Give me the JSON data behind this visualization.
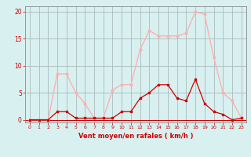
{
  "x": [
    0,
    1,
    2,
    3,
    4,
    5,
    6,
    7,
    8,
    9,
    10,
    11,
    12,
    13,
    14,
    15,
    16,
    17,
    18,
    19,
    20,
    21,
    22,
    23
  ],
  "rafales": [
    0,
    0,
    0,
    8.5,
    8.5,
    5,
    3,
    0.3,
    0.3,
    5.5,
    6.5,
    6.5,
    13,
    16.5,
    15.5,
    15.5,
    15.5,
    16,
    20,
    19.5,
    11.5,
    5,
    3.5,
    0.3
  ],
  "moyen": [
    0,
    0,
    0,
    1.5,
    1.5,
    0.3,
    0.3,
    0.3,
    0.3,
    0.3,
    1.5,
    1.5,
    4,
    5,
    6.5,
    6.5,
    4,
    3.5,
    7.5,
    3,
    1.5,
    1,
    0,
    0.3
  ],
  "xlabel": "Vent moyen/en rafales ( km/h )",
  "yticks": [
    0,
    5,
    10,
    15,
    20
  ],
  "xticks": [
    0,
    1,
    2,
    3,
    4,
    5,
    6,
    7,
    8,
    9,
    10,
    11,
    12,
    13,
    14,
    15,
    16,
    17,
    18,
    19,
    20,
    21,
    22,
    23
  ],
  "ylim": [
    -0.5,
    21
  ],
  "xlim": [
    -0.5,
    23.5
  ],
  "color_rafales": "#FFB0B0",
  "color_moyen": "#CC0000",
  "bg_color": "#D8F0F0",
  "grid_color": "#AABBBB",
  "spine_color": "#888888",
  "tick_color": "#CC0000",
  "xlabel_color": "#CC0000"
}
